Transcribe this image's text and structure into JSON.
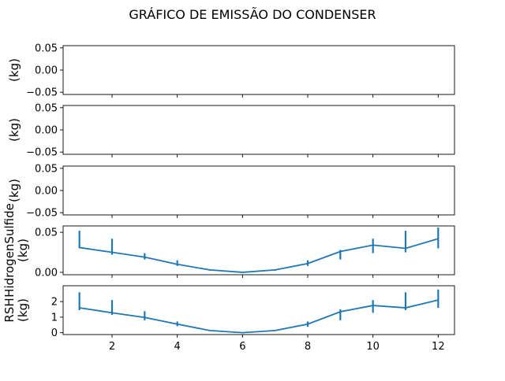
{
  "title": "GRÁFICO DE EMISSÃO DO CONDENSER",
  "line_color": "#1f77b4",
  "chart_data": [
    {
      "type": "line",
      "ylabel_lines": [
        "(kg)"
      ],
      "x": [],
      "values": [],
      "ylim": [
        -0.055,
        0.055
      ],
      "yticks": [
        0.05,
        0.0,
        -0.05
      ],
      "ytick_labels": [
        "0.05",
        "0.00",
        "−0.05"
      ],
      "xlim": [
        0.5,
        12.5
      ],
      "show_xtick_labels": false
    },
    {
      "type": "line",
      "ylabel_lines": [
        "(kg)"
      ],
      "x": [],
      "values": [],
      "ylim": [
        -0.055,
        0.055
      ],
      "yticks": [
        0.05,
        0.0,
        -0.05
      ],
      "ytick_labels": [
        "0.05",
        "0.00",
        "−0.05"
      ],
      "xlim": [
        0.5,
        12.5
      ],
      "show_xtick_labels": false
    },
    {
      "type": "line",
      "ylabel_lines": [
        "(kg)"
      ],
      "x": [],
      "values": [],
      "ylim": [
        -0.055,
        0.055
      ],
      "yticks": [
        0.05,
        0.0,
        -0.05
      ],
      "ytick_labels": [
        "0.05",
        "0.00",
        "−0.05"
      ],
      "xlim": [
        0.5,
        12.5
      ],
      "show_xtick_labels": false
    },
    {
      "type": "line",
      "ylabel_lines": [
        "HidrogenSulfide",
        "(kg)"
      ],
      "x": [
        1,
        2,
        3,
        4,
        5,
        6,
        7,
        8,
        9,
        10,
        11,
        12
      ],
      "values": [
        0.031,
        0.025,
        0.019,
        0.01,
        0.003,
        0.0,
        0.003,
        0.011,
        0.026,
        0.034,
        0.03,
        0.042
      ],
      "error_low": [
        0.03,
        0.022,
        0.016,
        0.008,
        0.002,
        0.0,
        0.002,
        0.008,
        0.016,
        0.024,
        0.025,
        0.03
      ],
      "error_high": [
        0.052,
        0.042,
        0.024,
        0.015,
        0.003,
        0.0,
        0.003,
        0.015,
        0.028,
        0.042,
        0.052,
        0.056
      ],
      "ylim": [
        -0.003,
        0.058
      ],
      "yticks": [
        0.05,
        0.0
      ],
      "ytick_labels": [
        "0.05",
        "0.00"
      ],
      "xlim": [
        0.5,
        12.5
      ],
      "show_xtick_labels": false
    },
    {
      "type": "line",
      "ylabel_lines": [
        "RSH",
        "(kg)"
      ],
      "x": [
        1,
        2,
        3,
        4,
        5,
        6,
        7,
        8,
        9,
        10,
        11,
        12
      ],
      "values": [
        1.6,
        1.28,
        0.98,
        0.55,
        0.14,
        0.0,
        0.14,
        0.55,
        1.35,
        1.75,
        1.6,
        2.1
      ],
      "error_low": [
        1.45,
        1.15,
        0.8,
        0.42,
        0.1,
        0.0,
        0.1,
        0.38,
        0.8,
        1.28,
        1.45,
        1.6
      ],
      "error_high": [
        2.6,
        2.1,
        1.38,
        0.72,
        0.16,
        0.0,
        0.16,
        0.72,
        1.5,
        2.1,
        2.6,
        2.78
      ],
      "ylim": [
        -0.12,
        3.02
      ],
      "yticks": [
        2,
        1,
        0
      ],
      "ytick_labels": [
        "2",
        "1",
        "0"
      ],
      "xlim": [
        0.5,
        12.5
      ],
      "xticks": [
        2,
        4,
        6,
        8,
        10,
        12
      ],
      "xtick_labels": [
        "2",
        "4",
        "6",
        "8",
        "10",
        "12"
      ],
      "show_xtick_labels": true
    }
  ]
}
